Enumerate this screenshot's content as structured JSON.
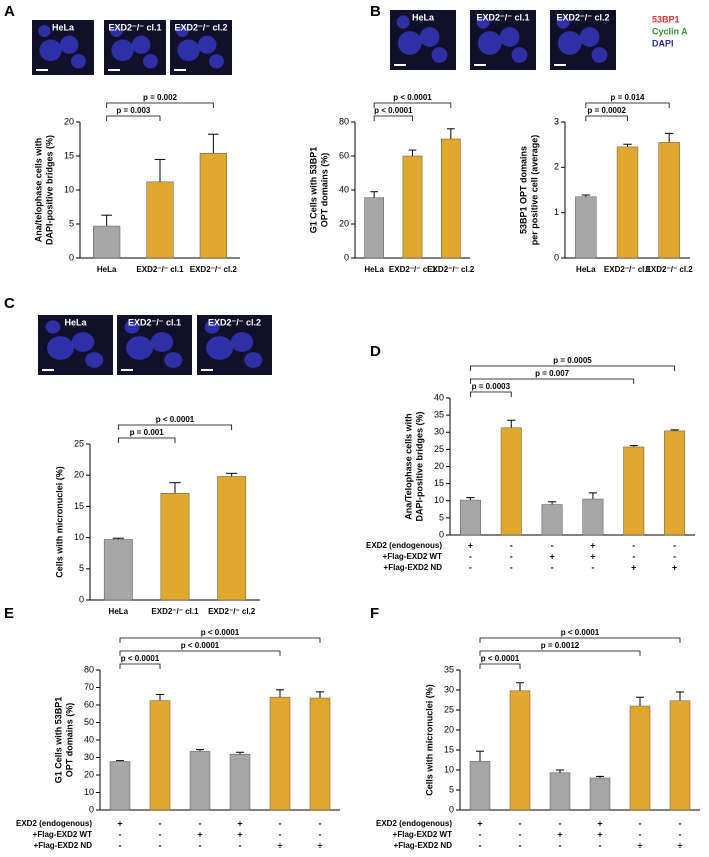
{
  "chart_data": [
    {
      "type": "bar",
      "panel": "A",
      "image_labels": [
        "HeLa",
        "EXD2⁻/⁻ cl.1",
        "EXD2⁻/⁻ cl.2"
      ],
      "ylabel": [
        "Ana/telophase cells with",
        "DAPI-positive bridges (%)"
      ],
      "categories": [
        "HeLa",
        "EXD2⁻/⁻ cl.1",
        "EXD2⁻/⁻ cl.2"
      ],
      "values": [
        4.7,
        11.2,
        15.4
      ],
      "errors": [
        1.6,
        3.3,
        2.8
      ],
      "colors": [
        "#a6a6a6",
        "#e0a82e",
        "#e0a82e"
      ],
      "ylim": [
        0,
        20
      ],
      "yticks": [
        0,
        5,
        10,
        15,
        20
      ],
      "significance": [
        {
          "label": "p = 0.003",
          "from": 0,
          "to": 1
        },
        {
          "label": "p = 0.002",
          "from": 0,
          "to": 2
        }
      ]
    },
    {
      "type": "bar",
      "panel": "B",
      "image_labels": [
        "HeLa",
        "EXD2⁻/⁻ cl.1",
        "EXD2⁻/⁻ cl.2"
      ],
      "legend": [
        {
          "name": "53BP1",
          "color": "#e03030"
        },
        {
          "name": "Cyclin A",
          "color": "#2e9e2e"
        },
        {
          "name": "DAPI",
          "color": "#2a2a9a"
        }
      ],
      "ylabel": [
        "G1 Cells with 53BP1",
        "OPT domains (%)"
      ],
      "categories": [
        "HeLa",
        "EXD2⁻/⁻ cl.1",
        "EXD2⁻/⁻ cl.2"
      ],
      "values": [
        35.5,
        60,
        70
      ],
      "errors": [
        3.5,
        3.5,
        6
      ],
      "colors": [
        "#a6a6a6",
        "#e0a82e",
        "#e0a82e"
      ],
      "ylim": [
        0,
        80
      ],
      "yticks": [
        0,
        20,
        40,
        60,
        80
      ],
      "significance": [
        {
          "label": "p < 0.0001",
          "from": 0,
          "to": 1
        },
        {
          "label": "p < 0.0001",
          "from": 0,
          "to": 2
        }
      ]
    },
    {
      "type": "bar",
      "ylabel": [
        "53BP1 OPT domains",
        "per positive cell (average)"
      ],
      "categories": [
        "HeLa",
        "EXD2⁻/⁻ cl.1",
        "EXD2⁻/⁻ cl.2"
      ],
      "values": [
        1.35,
        2.45,
        2.55
      ],
      "errors": [
        0.04,
        0.06,
        0.2
      ],
      "colors": [
        "#a6a6a6",
        "#e0a82e",
        "#e0a82e"
      ],
      "ylim": [
        0,
        3
      ],
      "yticks": [
        0,
        1,
        2,
        3
      ],
      "significance": [
        {
          "label": "p = 0.0002",
          "from": 0,
          "to": 1
        },
        {
          "label": "p = 0.014",
          "from": 0,
          "to": 2
        }
      ]
    },
    {
      "type": "bar",
      "panel": "C",
      "image_labels": [
        "HeLa",
        "EXD2⁻/⁻ cl.1",
        "EXD2⁻/⁻ cl.2"
      ],
      "ylabel": [
        "Cells with micronuclei (%)"
      ],
      "categories": [
        "HeLa",
        "EXD2⁻/⁻ cl.1",
        "EXD2⁻/⁻ cl.2"
      ],
      "values": [
        9.7,
        17.1,
        19.8
      ],
      "errors": [
        0.2,
        1.7,
        0.5
      ],
      "colors": [
        "#a6a6a6",
        "#e0a82e",
        "#e0a82e"
      ],
      "ylim": [
        0,
        25
      ],
      "yticks": [
        0,
        5,
        10,
        15,
        20,
        25
      ],
      "significance": [
        {
          "label": "p = 0.001",
          "from": 0,
          "to": 1
        },
        {
          "label": "p < 0.0001",
          "from": 0,
          "to": 2
        }
      ]
    },
    {
      "type": "bar",
      "panel": "D",
      "ylabel": [
        "Ana/Telophase cells with",
        "DAPI-positive bridges (%)"
      ],
      "values": [
        10.2,
        31.3,
        8.9,
        10.5,
        25.7,
        30.4
      ],
      "errors": [
        0.7,
        2.2,
        0.8,
        1.8,
        0.4,
        0.3
      ],
      "colors": [
        "#a6a6a6",
        "#e0a82e",
        "#a6a6a6",
        "#a6a6a6",
        "#e0a82e",
        "#e0a82e"
      ],
      "ylim": [
        0,
        40
      ],
      "yticks": [
        0,
        5,
        10,
        15,
        20,
        25,
        30,
        35,
        40
      ],
      "significance": [
        {
          "label": "p = 0.0003",
          "from": 0,
          "to": 1
        },
        {
          "label": "p = 0.007",
          "from": 0,
          "to": 4
        },
        {
          "label": "p = 0.0005",
          "from": 0,
          "to": 5
        }
      ],
      "conditions": [
        {
          "label": "EXD2 (endogenous)",
          "marks": [
            "+",
            "-",
            "-",
            "+",
            "-",
            "-"
          ]
        },
        {
          "label": "+Flag-EXD2 WT",
          "marks": [
            "-",
            "-",
            "+",
            "+",
            "-",
            "-"
          ]
        },
        {
          "label": "+Flag-EXD2 ND",
          "marks": [
            "-",
            "-",
            "-",
            "-",
            "+",
            "+"
          ]
        }
      ]
    },
    {
      "type": "bar",
      "panel": "E",
      "ylabel": [
        "G1 Cells with 53BP1",
        "OPT domains (%)"
      ],
      "values": [
        27.7,
        62.5,
        33.5,
        31.8,
        64.5,
        64
      ],
      "errors": [
        0.5,
        3.5,
        1,
        1.2,
        4.2,
        3.5
      ],
      "colors": [
        "#a6a6a6",
        "#e0a82e",
        "#a6a6a6",
        "#a6a6a6",
        "#e0a82e",
        "#e0a82e"
      ],
      "ylim": [
        0,
        80
      ],
      "yticks": [
        0,
        10,
        20,
        30,
        40,
        50,
        60,
        70,
        80
      ],
      "significance": [
        {
          "label": "p < 0.0001",
          "from": 0,
          "to": 1
        },
        {
          "label": "p < 0.0001",
          "from": 0,
          "to": 4
        },
        {
          "label": "p < 0.0001",
          "from": 0,
          "to": 5
        }
      ],
      "conditions": [
        {
          "label": "EXD2 (endogenous)",
          "marks": [
            "+",
            "-",
            "-",
            "+",
            "-",
            "-"
          ]
        },
        {
          "label": "+Flag-EXD2 WT",
          "marks": [
            "-",
            "-",
            "+",
            "+",
            "-",
            "-"
          ]
        },
        {
          "label": "+Flag-EXD2 ND",
          "marks": [
            "-",
            "-",
            "-",
            "-",
            "+",
            "+"
          ]
        }
      ]
    },
    {
      "type": "bar",
      "panel": "F",
      "ylabel": [
        "Cells with micronuclei (%)"
      ],
      "values": [
        12.2,
        29.8,
        9.3,
        8,
        26,
        27.3
      ],
      "errors": [
        2.5,
        2,
        0.7,
        0.4,
        2.2,
        2.2
      ],
      "colors": [
        "#a6a6a6",
        "#e0a82e",
        "#a6a6a6",
        "#a6a6a6",
        "#e0a82e",
        "#e0a82e"
      ],
      "ylim": [
        0,
        35
      ],
      "yticks": [
        0,
        5,
        10,
        15,
        20,
        25,
        30,
        35
      ],
      "significance": [
        {
          "label": "p < 0.0001",
          "from": 0,
          "to": 1
        },
        {
          "label": "p = 0.0012",
          "from": 0,
          "to": 4
        },
        {
          "label": "p < 0.0001",
          "from": 0,
          "to": 5
        }
      ],
      "conditions": [
        {
          "label": "EXD2 (endogenous)",
          "marks": [
            "+",
            "-",
            "-",
            "+",
            "-",
            "-"
          ]
        },
        {
          "label": "+Flag-EXD2 WT",
          "marks": [
            "-",
            "-",
            "+",
            "+",
            "-",
            "-"
          ]
        },
        {
          "label": "+Flag-EXD2 ND",
          "marks": [
            "-",
            "-",
            "-",
            "-",
            "+",
            "+"
          ]
        }
      ]
    }
  ]
}
